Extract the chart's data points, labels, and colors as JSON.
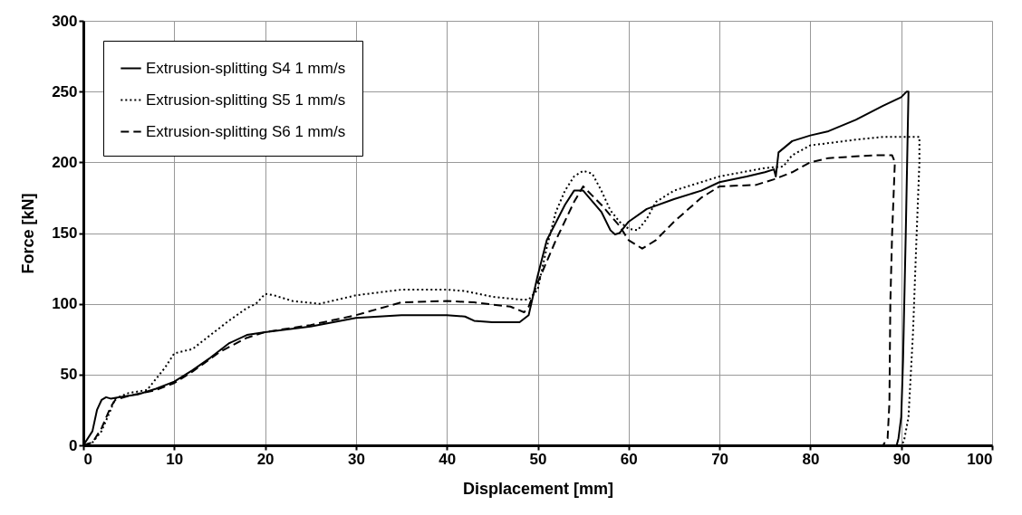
{
  "chart_data": {
    "type": "line",
    "xlabel": "Displacement [mm]",
    "ylabel": "Force  [kN]",
    "xlim": [
      0,
      100
    ],
    "ylim": [
      0,
      300
    ],
    "xticks": [
      0,
      10,
      20,
      30,
      40,
      50,
      60,
      70,
      80,
      90,
      100
    ],
    "yticks": [
      0,
      50,
      100,
      150,
      200,
      250,
      300
    ],
    "grid": true,
    "legend": "top left",
    "marker": "none",
    "series": [
      {
        "name": "Extrusion-splitting S4 1 mm/s",
        "color": "#000000",
        "line_style": "solid",
        "x": [
          0,
          1,
          1.5,
          2,
          2.5,
          3,
          4,
          6,
          8,
          10,
          12,
          14,
          16,
          18,
          20,
          25,
          30,
          35,
          40,
          42,
          43,
          45,
          48,
          49,
          50,
          51,
          53,
          54,
          55,
          57,
          58,
          58.5,
          59,
          60,
          62,
          65,
          68,
          70,
          73,
          75,
          76,
          76.2,
          76.5,
          78,
          80,
          82,
          85,
          88,
          90,
          90.6,
          90.8,
          90.5,
          90.2,
          90,
          89.7,
          89.5
        ],
        "values": [
          0,
          10,
          25,
          32,
          34,
          33,
          34,
          36,
          40,
          45,
          53,
          62,
          72,
          78,
          80,
          84,
          90,
          92,
          92,
          91,
          88,
          87,
          87,
          92,
          120,
          145,
          170,
          180,
          180,
          165,
          152,
          149,
          150,
          158,
          167,
          174,
          180,
          186,
          190,
          193,
          195,
          190,
          207,
          215,
          219,
          222,
          230,
          240,
          246,
          250,
          250,
          150,
          60,
          20,
          5,
          0
        ]
      },
      {
        "name": "Extrusion-splitting S5 1 mm/s",
        "color": "#000000",
        "line_style": "dotted",
        "x": [
          0,
          1,
          2,
          3,
          3.5,
          5,
          7,
          8,
          9,
          10,
          12,
          14,
          16,
          18,
          19,
          20,
          21,
          23,
          26,
          28,
          30,
          35,
          40,
          42,
          45,
          48,
          49,
          50,
          51,
          52,
          53,
          54,
          55,
          56,
          57,
          58,
          59,
          60,
          61,
          62,
          63,
          65,
          68,
          70,
          75,
          77,
          78,
          80,
          85,
          88,
          91,
          92,
          92,
          91.7,
          91.3,
          90.8,
          90.3,
          90
        ],
        "values": [
          0,
          2,
          10,
          25,
          33,
          37,
          39,
          47,
          55,
          65,
          68,
          78,
          88,
          97,
          100,
          107,
          106,
          102,
          100,
          103,
          106,
          110,
          110,
          109,
          105,
          103,
          103,
          110,
          140,
          165,
          180,
          190,
          194,
          192,
          180,
          166,
          158,
          153,
          152,
          160,
          172,
          180,
          186,
          190,
          196,
          197,
          205,
          212,
          216,
          218,
          218,
          218,
          200,
          150,
          80,
          20,
          3,
          0
        ]
      },
      {
        "name": "Extrusion-splitting S6 1 mm/s",
        "color": "#000000",
        "line_style": "dashed",
        "x": [
          0,
          1,
          2,
          3,
          3.5,
          5,
          8,
          10,
          12,
          15,
          18,
          20,
          25,
          30,
          35,
          40,
          43,
          47,
          48.5,
          49,
          50,
          52,
          54,
          55,
          57,
          59,
          60,
          61.5,
          63,
          65,
          68,
          70,
          74,
          76,
          78,
          80,
          82,
          87,
          89,
          89.3,
          89,
          88.8,
          88.7,
          88.5,
          88
        ],
        "values": [
          0,
          2,
          12,
          27,
          32,
          35,
          39,
          44,
          52,
          66,
          76,
          80,
          85,
          92,
          101,
          102,
          101,
          98,
          94,
          98,
          115,
          145,
          172,
          183,
          170,
          155,
          145,
          139,
          145,
          158,
          175,
          183,
          184,
          188,
          193,
          200,
          203,
          205,
          205,
          200,
          150,
          100,
          30,
          5,
          0
        ]
      }
    ]
  }
}
